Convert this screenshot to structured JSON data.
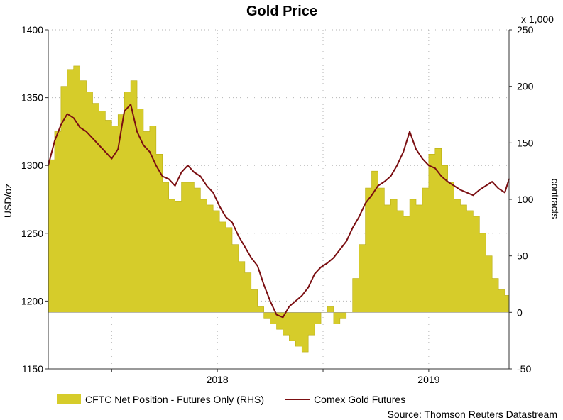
{
  "chart_data": {
    "type": "line+area",
    "title": "Gold Price",
    "ylabel_left": "USD/oz",
    "ylabel_right": "contracts",
    "right_axis_multiplier": "x 1,000",
    "left_axis": {
      "min": 1150,
      "max": 1400,
      "ticks": [
        1150,
        1200,
        1250,
        1300,
        1350,
        1400
      ]
    },
    "right_axis": {
      "min": -50,
      "max": 250,
      "ticks": [
        -50,
        0,
        50,
        100,
        150,
        200,
        250
      ]
    },
    "x_axis": {
      "start": 2017.2,
      "end": 2019.38,
      "tick_labels": [
        {
          "label": "2018",
          "x": 2018.0
        },
        {
          "label": "2019",
          "x": 2019.0
        }
      ],
      "minor_ticks": [
        2017.5,
        2018.0,
        2018.5,
        2019.0
      ]
    },
    "series": [
      {
        "name": "CFTC Net Position - Futures Only (RHS)",
        "type": "area",
        "axis": "right",
        "color": "#d6cc2a",
        "x": [
          2017.2,
          2017.23,
          2017.26,
          2017.29,
          2017.32,
          2017.35,
          2017.38,
          2017.41,
          2017.44,
          2017.47,
          2017.5,
          2017.53,
          2017.56,
          2017.59,
          2017.62,
          2017.65,
          2017.68,
          2017.71,
          2017.74,
          2017.77,
          2017.8,
          2017.83,
          2017.86,
          2017.89,
          2017.92,
          2017.95,
          2017.98,
          2018.01,
          2018.04,
          2018.07,
          2018.1,
          2018.13,
          2018.16,
          2018.19,
          2018.22,
          2018.25,
          2018.28,
          2018.31,
          2018.34,
          2018.37,
          2018.4,
          2018.43,
          2018.46,
          2018.49,
          2018.52,
          2018.55,
          2018.58,
          2018.61,
          2018.64,
          2018.67,
          2018.7,
          2018.73,
          2018.76,
          2018.79,
          2018.82,
          2018.85,
          2018.88,
          2018.91,
          2018.94,
          2018.97,
          2019.0,
          2019.03,
          2019.06,
          2019.09,
          2019.12,
          2019.15,
          2019.18,
          2019.21,
          2019.24,
          2019.27,
          2019.3,
          2019.33,
          2019.36,
          2019.38
        ],
        "values": [
          135,
          160,
          200,
          215,
          218,
          205,
          195,
          185,
          178,
          170,
          165,
          175,
          195,
          205,
          180,
          160,
          165,
          140,
          115,
          100,
          98,
          115,
          115,
          110,
          100,
          95,
          90,
          80,
          75,
          60,
          45,
          35,
          20,
          5,
          -5,
          -10,
          -15,
          -20,
          -25,
          -30,
          -35,
          -20,
          -10,
          0,
          5,
          -10,
          -5,
          0,
          30,
          60,
          110,
          125,
          110,
          95,
          100,
          90,
          85,
          100,
          95,
          110,
          140,
          145,
          130,
          115,
          100,
          95,
          90,
          85,
          70,
          50,
          30,
          20,
          15,
          15
        ]
      },
      {
        "name": "Comex Gold Futures",
        "type": "line",
        "axis": "left",
        "color": "#7b0f12",
        "x": [
          2017.2,
          2017.23,
          2017.26,
          2017.29,
          2017.32,
          2017.35,
          2017.38,
          2017.41,
          2017.44,
          2017.47,
          2017.5,
          2017.53,
          2017.56,
          2017.59,
          2017.62,
          2017.65,
          2017.68,
          2017.71,
          2017.74,
          2017.77,
          2017.8,
          2017.83,
          2017.86,
          2017.89,
          2017.92,
          2017.95,
          2017.98,
          2018.01,
          2018.04,
          2018.07,
          2018.1,
          2018.13,
          2018.16,
          2018.19,
          2018.22,
          2018.25,
          2018.28,
          2018.31,
          2018.34,
          2018.37,
          2018.4,
          2018.43,
          2018.46,
          2018.49,
          2018.52,
          2018.55,
          2018.58,
          2018.61,
          2018.64,
          2018.67,
          2018.7,
          2018.73,
          2018.76,
          2018.79,
          2018.82,
          2018.85,
          2018.88,
          2018.91,
          2018.94,
          2018.97,
          2019.0,
          2019.03,
          2019.06,
          2019.09,
          2019.12,
          2019.15,
          2019.18,
          2019.21,
          2019.24,
          2019.27,
          2019.3,
          2019.33,
          2019.36,
          2019.38
        ],
        "values": [
          1300,
          1318,
          1330,
          1338,
          1335,
          1328,
          1325,
          1320,
          1315,
          1310,
          1305,
          1312,
          1340,
          1345,
          1325,
          1315,
          1310,
          1300,
          1292,
          1290,
          1285,
          1295,
          1300,
          1295,
          1292,
          1285,
          1280,
          1270,
          1262,
          1258,
          1248,
          1240,
          1232,
          1226,
          1212,
          1200,
          1190,
          1188,
          1196,
          1200,
          1204,
          1210,
          1220,
          1225,
          1228,
          1232,
          1238,
          1244,
          1254,
          1262,
          1272,
          1278,
          1285,
          1288,
          1292,
          1300,
          1310,
          1325,
          1312,
          1305,
          1300,
          1298,
          1292,
          1288,
          1285,
          1282,
          1280,
          1278,
          1282,
          1285,
          1288,
          1283,
          1280,
          1290
        ]
      }
    ]
  },
  "legend": {
    "area_label": "CFTC Net Position - Futures Only (RHS)",
    "line_label": "Comex Gold Futures"
  },
  "source": "Source: Thomson Reuters Datastream",
  "colors": {
    "area": "#d6cc2a",
    "line": "#7b0f12",
    "grid": "#b5b5b5"
  }
}
